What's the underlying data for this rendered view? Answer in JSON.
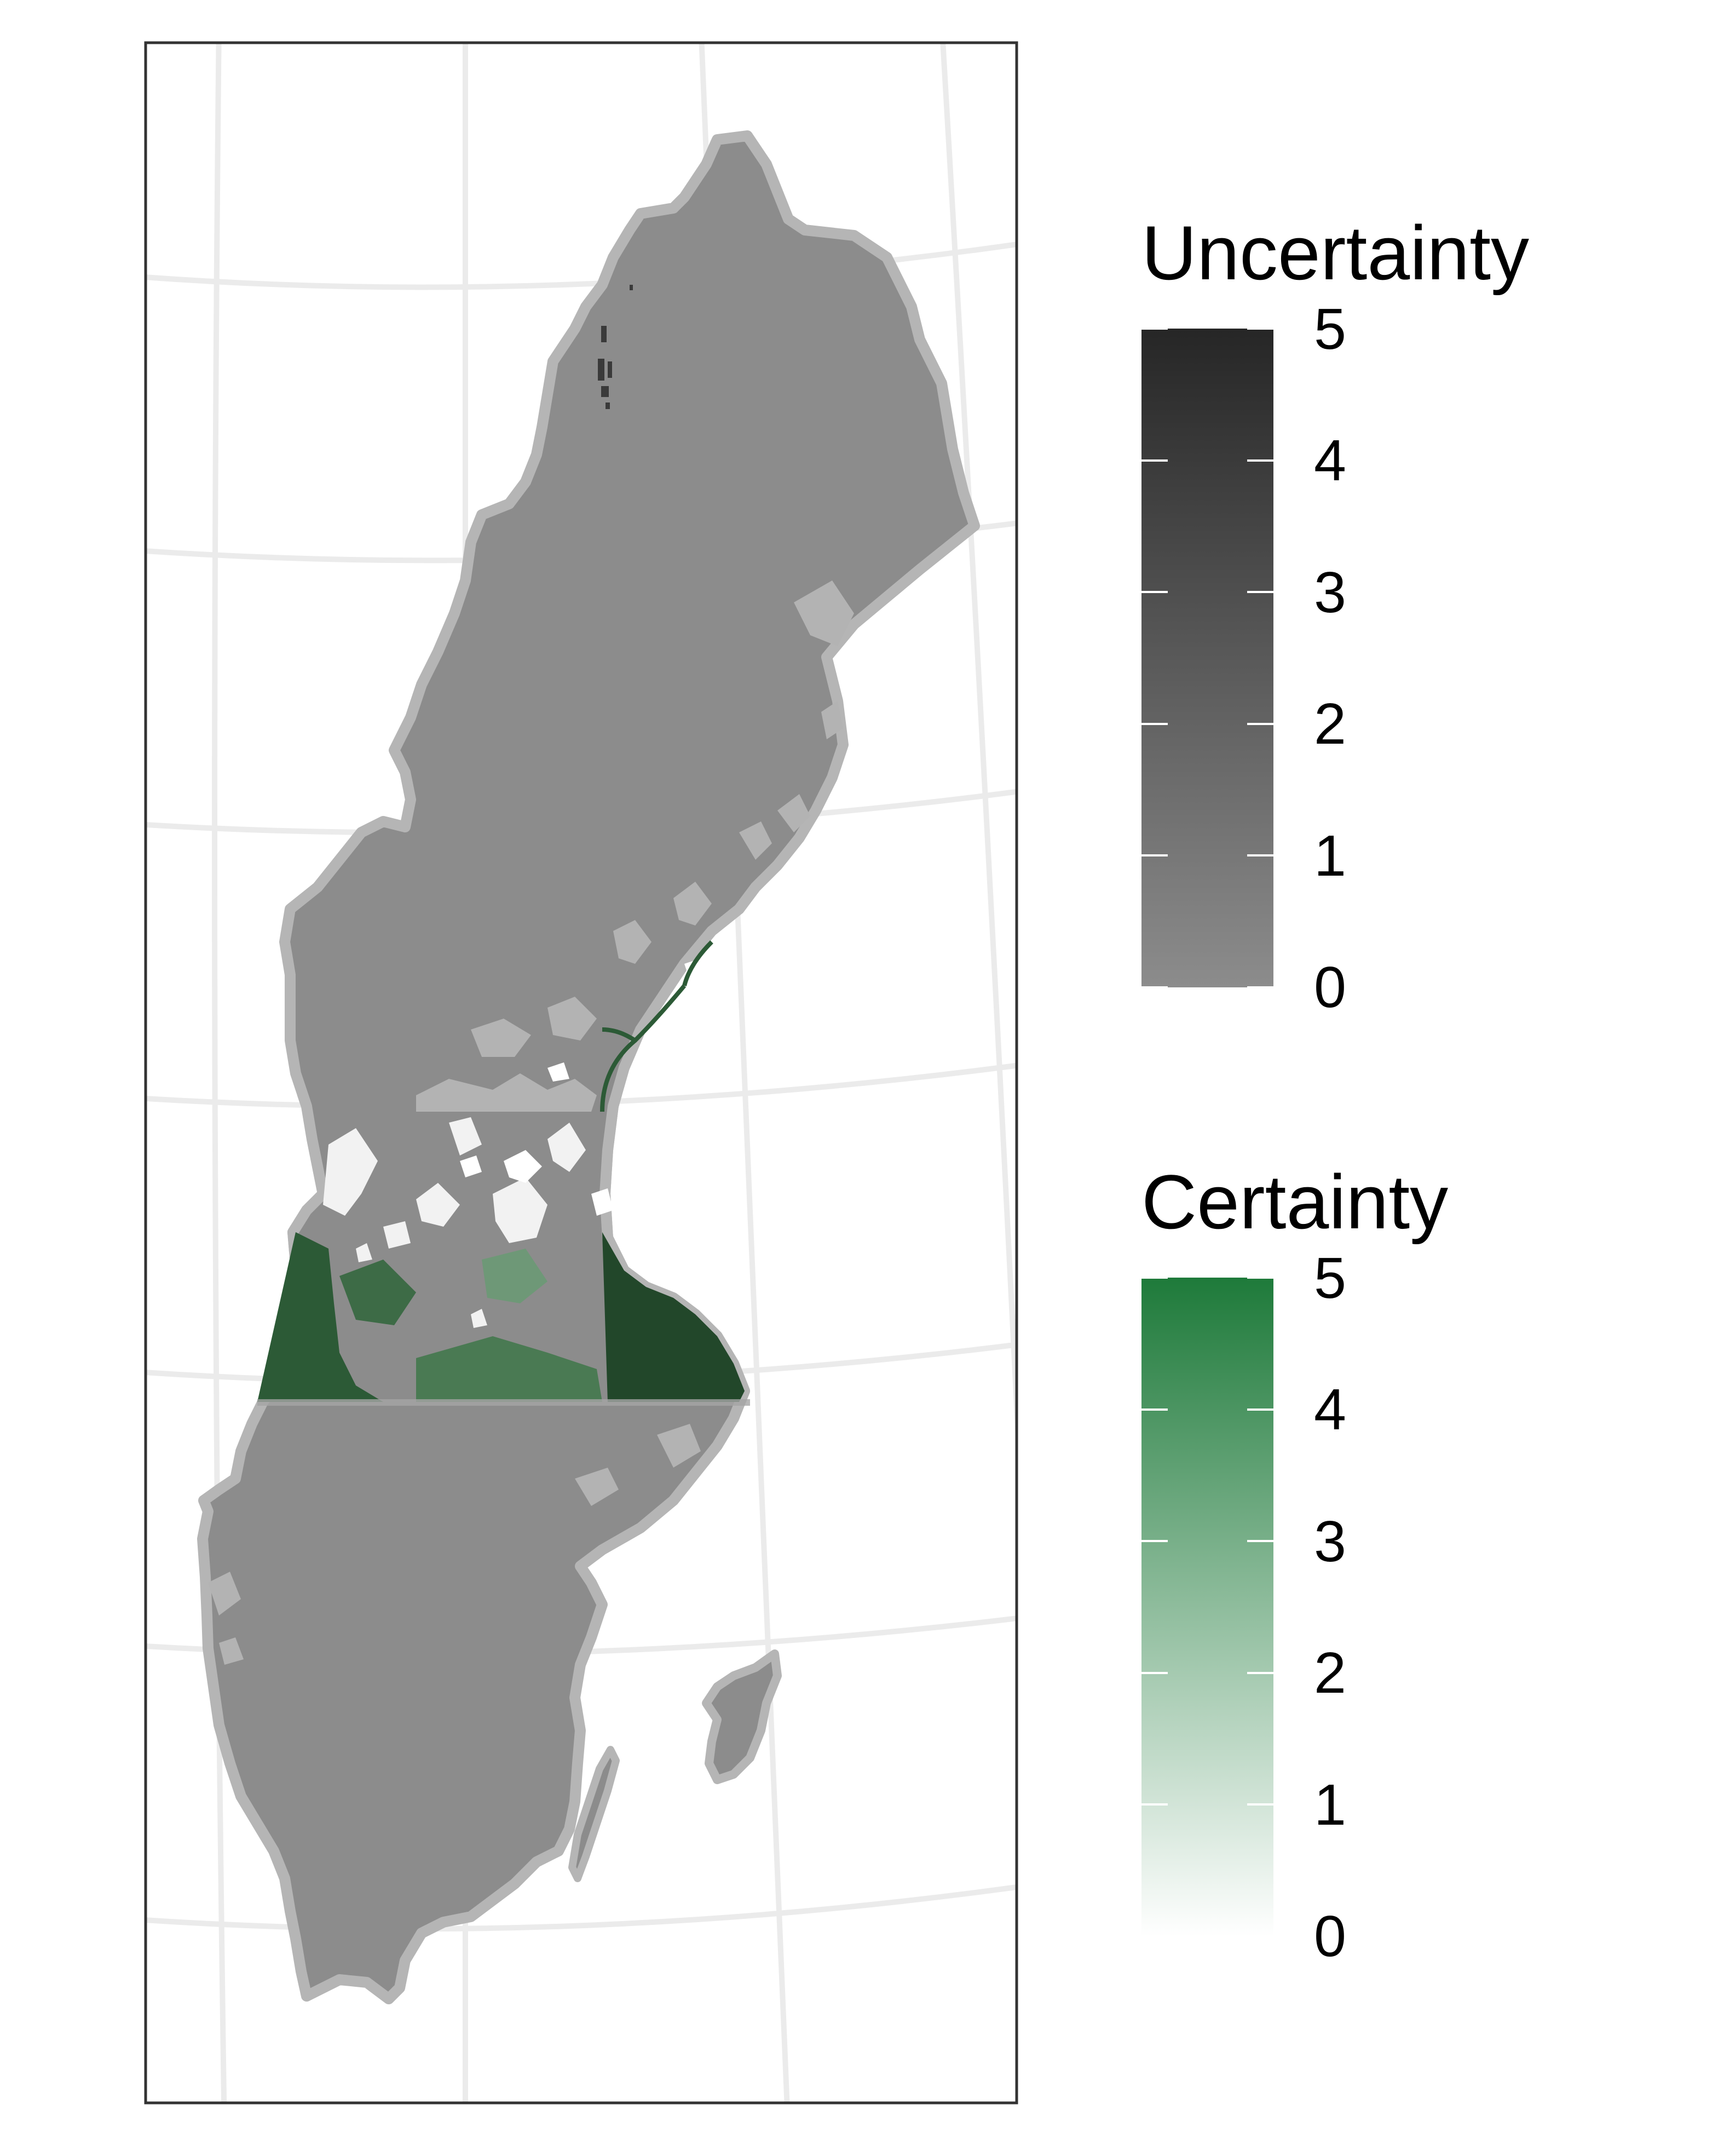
{
  "map": {
    "region": "Sweden",
    "graticule": true,
    "land_fill": "#8c8c8c",
    "land_outline": "#b5b5b5",
    "certain_fill": "#22472a",
    "background": "#ffffff"
  },
  "legends": [
    {
      "title": "Uncertainty",
      "ticks": [
        "0",
        "1",
        "2",
        "3",
        "4",
        "5"
      ],
      "range": [
        0,
        5
      ],
      "color_low": "#8c8c8c",
      "color_high": "#262626"
    },
    {
      "title": "Certainty",
      "ticks": [
        "0",
        "1",
        "2",
        "3",
        "4",
        "5"
      ],
      "range": [
        0,
        5
      ],
      "color_low": "#ffffff",
      "color_high": "#1e7a3a"
    }
  ]
}
